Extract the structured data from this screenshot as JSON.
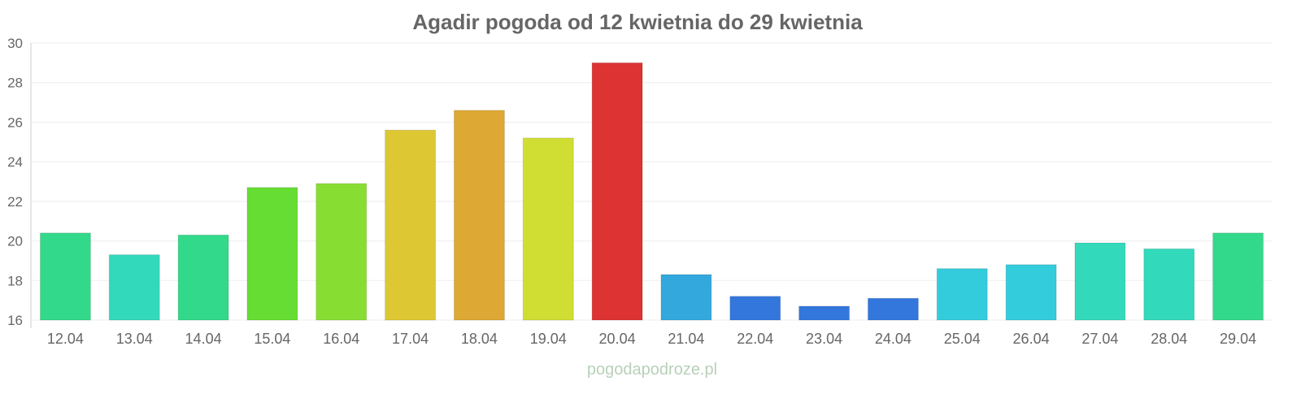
{
  "chart_data": {
    "type": "bar",
    "title": "Agadir pogoda od 12 kwietnia do 29 kwietnia",
    "xlabel": "",
    "ylabel": "",
    "ylim": [
      16,
      30
    ],
    "yticks": [
      16,
      18,
      20,
      22,
      24,
      26,
      28,
      30
    ],
    "grid": true,
    "categories": [
      "12.04",
      "13.04",
      "14.04",
      "15.04",
      "16.04",
      "17.04",
      "18.04",
      "19.04",
      "20.04",
      "21.04",
      "22.04",
      "23.04",
      "24.04",
      "25.04",
      "26.04",
      "27.04",
      "28.04",
      "29.04"
    ],
    "values": [
      20.4,
      19.3,
      20.3,
      22.7,
      22.9,
      25.6,
      26.6,
      25.2,
      29.0,
      18.3,
      17.2,
      16.7,
      17.1,
      18.6,
      18.8,
      19.9,
      19.6,
      20.4
    ],
    "colors": [
      "#33d98a",
      "#33d9bb",
      "#33d98a",
      "#66dd33",
      "#88dd33",
      "#ddc833",
      "#dda833",
      "#d0dd33",
      "#dd3333",
      "#33a8dd",
      "#3377dd",
      "#3377dd",
      "#3377dd",
      "#33ccdd",
      "#33ccdd",
      "#33d9bb",
      "#33d9bb",
      "#33d98a"
    ]
  },
  "watermark": "pogodapodroze.pl"
}
